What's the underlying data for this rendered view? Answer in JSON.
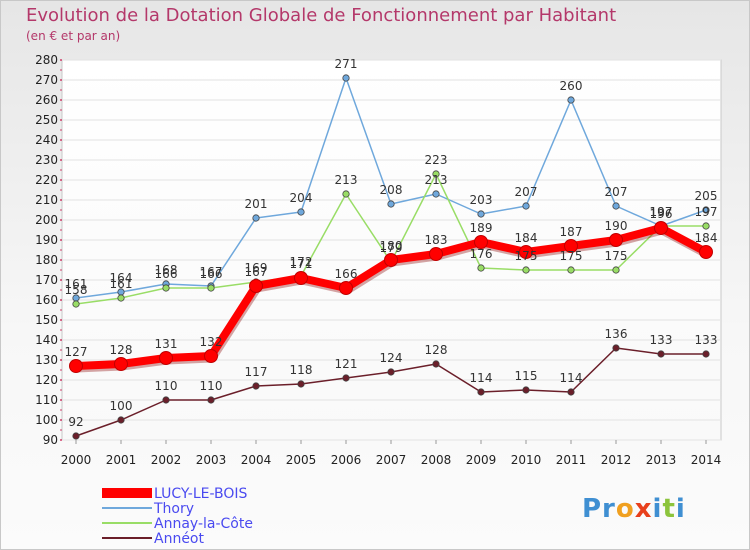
{
  "chart_data": {
    "type": "line",
    "title": "Evolution de la Dotation Globale de Fonctionnement par Habitant",
    "subtitle": "(en € et par an)",
    "xlabel": "",
    "ylabel": "",
    "ylim": [
      90,
      280
    ],
    "yticks": [
      90,
      100,
      110,
      120,
      130,
      140,
      150,
      160,
      170,
      180,
      190,
      200,
      210,
      220,
      230,
      240,
      250,
      260,
      270,
      280
    ],
    "grid": true,
    "legend_position": "bottom-left",
    "x": [
      "2000",
      "2001",
      "2002",
      "2003",
      "2004",
      "2005",
      "2006",
      "2007",
      "2008",
      "2009",
      "2010",
      "2011",
      "2012",
      "2013",
      "2014"
    ],
    "series": [
      {
        "name": "LUCY-LE-BOIS",
        "color": "#ff0000",
        "values": [
          127,
          128,
          131,
          132,
          167,
          171,
          166,
          180,
          183,
          189,
          184,
          187,
          190,
          196,
          184
        ],
        "labels": [
          "127",
          "128",
          "131",
          "132",
          "167",
          "171",
          "166",
          "180",
          "183",
          "189",
          "184",
          "187",
          "190",
          "196",
          "184"
        ]
      },
      {
        "name": "Thory",
        "color": "#6fa8dc",
        "values": [
          161,
          164,
          168,
          167,
          201,
          204,
          271,
          208,
          213,
          203,
          207,
          260,
          207,
          197,
          205
        ],
        "labels": [
          "161",
          "164",
          "168",
          "167",
          "201",
          "204",
          "271",
          "208",
          "213",
          "203",
          "207",
          "260",
          "207",
          "197",
          "205"
        ]
      },
      {
        "name": "Annay-la-Côte",
        "color": "#99dd66",
        "values": [
          158,
          161,
          166,
          166,
          169,
          172,
          213,
          179,
          223,
          176,
          175,
          175,
          175,
          197,
          197
        ],
        "labels": [
          "158",
          "161",
          "166",
          "166",
          "169",
          "172",
          "213",
          "179",
          "223",
          "176",
          "175",
          "175",
          "175",
          "197",
          "197"
        ]
      },
      {
        "name": "Annéot",
        "color": "#6b1f2a",
        "values": [
          92,
          100,
          110,
          110,
          117,
          118,
          121,
          124,
          128,
          114,
          115,
          114,
          136,
          133,
          133
        ],
        "labels": [
          "92",
          "100",
          "110",
          "110",
          "117",
          "118",
          "121",
          "124",
          "128",
          "114",
          "115",
          "114",
          "136",
          "133",
          "133"
        ]
      }
    ]
  },
  "brand": {
    "text": "Proxiti"
  }
}
